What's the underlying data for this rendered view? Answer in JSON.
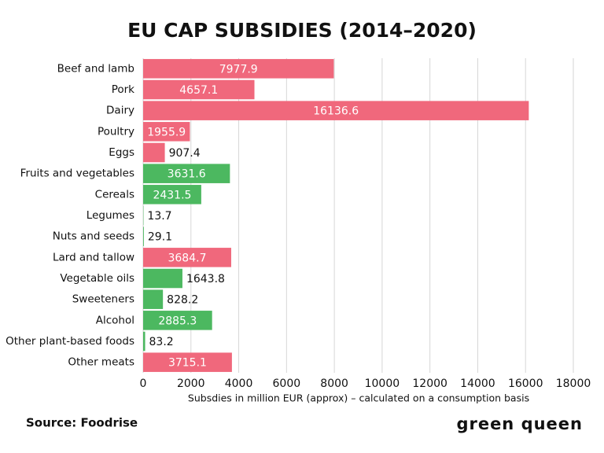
{
  "chart_data": {
    "type": "bar",
    "orientation": "horizontal",
    "title": "EU CAP SUBSIDIES (2014–2020)",
    "categories": [
      "Beef and lamb",
      "Pork",
      "Dairy",
      "Poultry",
      "Eggs",
      "Fruits and vegetables",
      "Cereals",
      "Legumes",
      "Nuts and seeds",
      "Lard and tallow",
      "Vegetable oils",
      "Sweeteners",
      "Alcohol",
      "Other plant-based foods",
      "Other meats"
    ],
    "values": [
      7977.9,
      4657.1,
      16136.6,
      1955.9,
      907.4,
      3631.6,
      2431.5,
      13.7,
      29.1,
      3684.7,
      1643.8,
      828.2,
      2885.3,
      83.2,
      3715.1
    ],
    "colors": [
      "#f0687c",
      "#f0687c",
      "#f0687c",
      "#f0687c",
      "#f0687c",
      "#4cb860",
      "#4cb860",
      "#4cb860",
      "#4cb860",
      "#f0687c",
      "#4cb860",
      "#4cb860",
      "#4cb860",
      "#4cb860",
      "#f0687c"
    ],
    "xlim": [
      0,
      18000
    ],
    "xticks": [
      0,
      2000,
      4000,
      6000,
      8000,
      10000,
      12000,
      14000,
      16000,
      18000
    ],
    "grid": true,
    "x_label": "Subsdies in million EUR (approx) – calculated on a consumption basis",
    "source": "Source: Foodrise",
    "brand": "green queen"
  }
}
